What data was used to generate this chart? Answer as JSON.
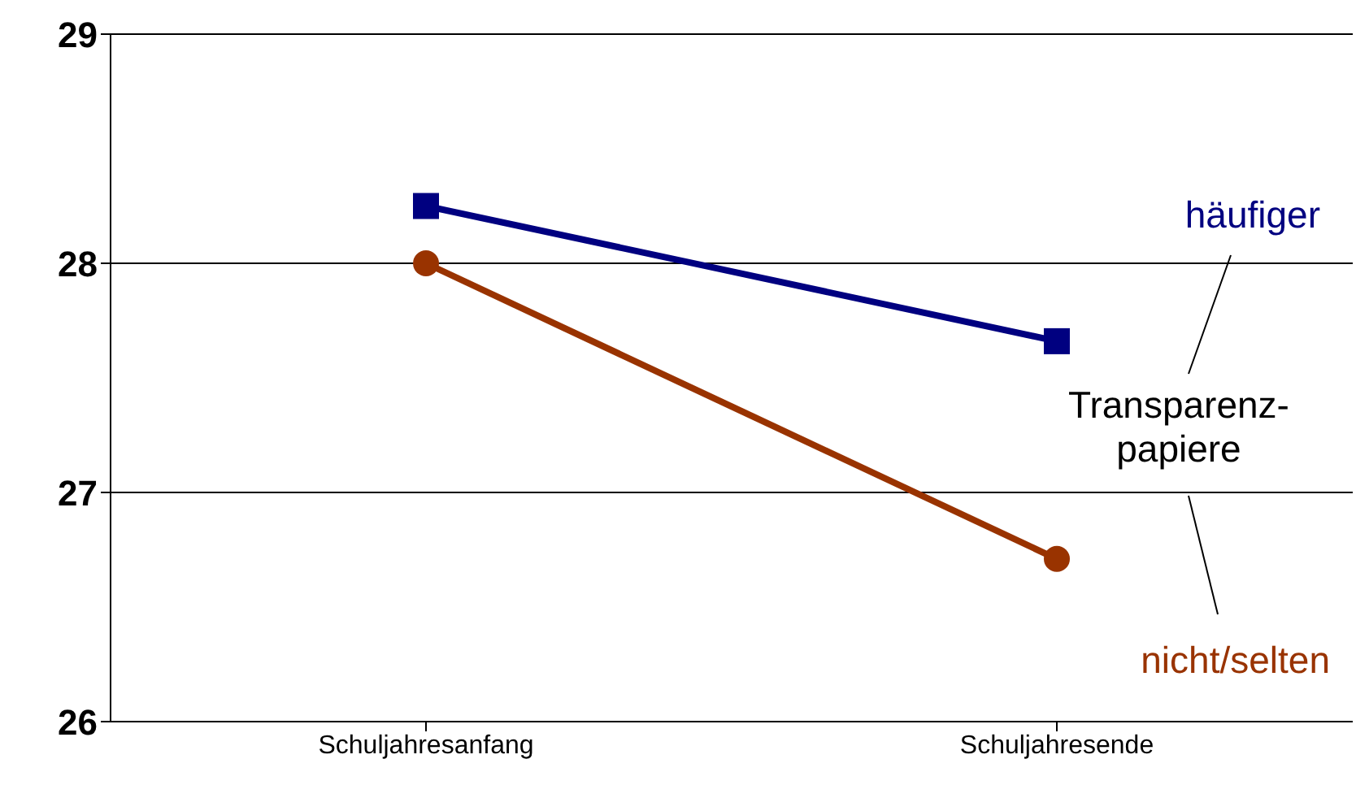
{
  "chart_data": {
    "type": "line",
    "categories": [
      "Schuljahresanfang",
      "Schuljahresende"
    ],
    "series": [
      {
        "name": "häufiger",
        "color": "#000080",
        "values": [
          28.25,
          27.66
        ],
        "marker": "square"
      },
      {
        "name": "nicht/selten",
        "color": "#993300",
        "values": [
          28.0,
          26.71
        ],
        "marker": "circle"
      }
    ],
    "legend_title": "Transparenz-\npapiere",
    "ylim": [
      26,
      29
    ],
    "yticks": [
      26,
      27,
      28,
      29
    ],
    "grid": "y",
    "legend": "right"
  }
}
